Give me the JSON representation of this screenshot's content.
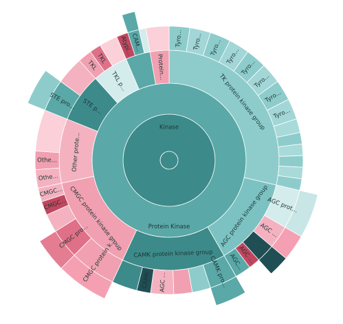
{
  "chart_data": {
    "type": "sunburst",
    "nodes": [
      {
        "name": "Kinase",
        "value": 360,
        "color": "#3d8a8a",
        "children": [
          {
            "name": "Protein Kinase",
            "value": 360,
            "color": "#5aa8a8",
            "children": [
              {
                "name": "TK protein kinase group",
                "value": 103,
                "color": "#8ecccc",
                "children": [
                  {
                    "name": "Tyro...",
                    "value": 9,
                    "color": "#8ecccc"
                  },
                  {
                    "name": "Tyro...",
                    "value": 9,
                    "color": "#a3d6d6"
                  },
                  {
                    "name": "Tyro...",
                    "value": 9,
                    "color": "#8ecccc"
                  },
                  {
                    "name": "Tyro...",
                    "value": 9,
                    "color": "#a3d6d6"
                  },
                  {
                    "name": "Tyro...",
                    "value": 9,
                    "color": "#8ecccc"
                  },
                  {
                    "name": "Tyro...",
                    "value": 9,
                    "color": "#a3d6d6"
                  },
                  {
                    "name": "Tyro...",
                    "value": 9,
                    "color": "#8ecccc"
                  },
                  {
                    "name": "Tyro...",
                    "value": 9,
                    "color": "#a3d6d6"
                  },
                  {
                    "name": null,
                    "value": 6,
                    "color": "#a8dada"
                  },
                  {
                    "name": null,
                    "value": 5,
                    "color": "#8ecccc"
                  },
                  {
                    "name": null,
                    "value": 5,
                    "color": "#a8dada"
                  },
                  {
                    "name": null,
                    "value": 5,
                    "color": "#8ecccc"
                  },
                  {
                    "name": null,
                    "value": 5,
                    "color": "#a8dada"
                  },
                  {
                    "name": null,
                    "value": 5,
                    "color": "#8ecccc"
                  }
                ]
              },
              {
                "name": "AGC protein kinase group",
                "value": 47,
                "color": "#7cc2c2",
                "children": [
                  {
                    "name": "AGC prot...",
                    "value": 17,
                    "color": "#d4ecec",
                    "children": [
                      {
                        "name": null,
                        "value": 17,
                        "color": "#c8e6e6"
                      }
                    ]
                  },
                  {
                    "name": "AGC ...",
                    "value": 10,
                    "color": "#f4b2c0",
                    "children": [
                      {
                        "name": null,
                        "value": 10,
                        "color": "#f4a0b2"
                      }
                    ]
                  },
                  {
                    "name": null,
                    "value": 8,
                    "color": "#1f4f55",
                    "children": [
                      {
                        "name": null,
                        "value": 8,
                        "color": "#1f4f55"
                      }
                    ]
                  },
                  {
                    "name": "AGC ...",
                    "value": 5,
                    "color": "#c0475f"
                  },
                  {
                    "name": "AGC...",
                    "value": 7,
                    "color": "#5aa8a8"
                  }
                ]
              },
              {
                "name": "CAMK protein kinase group",
                "value": 55,
                "color": "#3d8a8a",
                "children": [
                  {
                    "name": "CAMK pro...",
                    "value": 12,
                    "color": "#5aa8a8",
                    "children": [
                      {
                        "name": null,
                        "value": 12,
                        "color": "#5aa8a8"
                      }
                    ]
                  },
                  {
                    "name": null,
                    "value": 8,
                    "color": "#8ecccc"
                  },
                  {
                    "name": null,
                    "value": 8,
                    "color": "#f0a0b0"
                  },
                  {
                    "name": "AGC ...",
                    "value": 10,
                    "color": "#f4b2c0"
                  },
                  {
                    "name": "CAMK",
                    "value": 6,
                    "color": "#1f4f55"
                  },
                  {
                    "name": null,
                    "value": 11,
                    "color": "#3d8a8a"
                  }
                ]
              },
              {
                "name": "CMGC protein kinase group",
                "value": 53,
                "color": "#f0a0b0",
                "children": [
                  {
                    "name": "CMGC protein k...",
                    "value": 20,
                    "color": "#f0a0b0",
                    "children": [
                      {
                        "name": null,
                        "value": 20,
                        "color": "#f4a0b2"
                      }
                    ]
                  },
                  {
                    "name": "CMGC pro...",
                    "value": 13,
                    "color": "#e07088",
                    "children": [
                      {
                        "name": null,
                        "value": 13,
                        "color": "#e47d92"
                      }
                    ]
                  },
                  {
                    "name": null,
                    "value": 8,
                    "color": "#f4b2c0"
                  },
                  {
                    "name": "CMGC...",
                    "value": 6,
                    "color": "#c0475f"
                  },
                  {
                    "name": "CMGC...",
                    "value": 6,
                    "color": "#f4b2c0"
                  }
                ]
              },
              {
                "name": "Other prote...",
                "value": 34,
                "color": "#f4b2c0",
                "children": [
                  {
                    "name": "Othe...",
                    "value": 8,
                    "color": "#f4b2c0"
                  },
                  {
                    "name": "Othe...",
                    "value": 8,
                    "color": "#f0a0b0"
                  },
                  {
                    "name": null,
                    "value": 18,
                    "color": "#fbd0d8"
                  }
                ]
              },
              {
                "name": "STE p...",
                "value": 26,
                "color": "#3d8a8a",
                "children": [
                  {
                    "name": "STE pro...",
                    "value": 14,
                    "color": "#5aa8a8",
                    "children": [
                      {
                        "name": null,
                        "value": 14,
                        "color": "#8ecccc"
                      }
                    ]
                  },
                  {
                    "name": null,
                    "value": 12,
                    "color": "#f4b2c0"
                  }
                ]
              },
              {
                "name": "TKL p...",
                "value": 19,
                "color": "#d4ecec",
                "children": [
                  {
                    "name": "TKL",
                    "value": 6,
                    "color": "#f0a0b0"
                  },
                  {
                    "name": "TKL",
                    "value": 5,
                    "color": "#e07088"
                  },
                  {
                    "name": null,
                    "value": 8,
                    "color": "#fbd0d8"
                  }
                ]
              },
              {
                "name": null,
                "value": 13,
                "color": "#5aa8a8",
                "children": [
                  {
                    "name": "Atypi...",
                    "value": 5,
                    "color": "#c0475f"
                  },
                  {
                    "name": "CAM...",
                    "value": 5,
                    "color": "#5aa8a8",
                    "children": [
                      {
                        "name": null,
                        "value": 5,
                        "color": "#5aa8a8"
                      }
                    ]
                  },
                  {
                    "name": null,
                    "value": 3,
                    "color": "#d4ecec"
                  }
                ]
              },
              {
                "name": "Protein...",
                "value": 10,
                "color": "#f0a0b0",
                "children": [
                  {
                    "name": null,
                    "value": 10,
                    "color": "#fbd0d8"
                  }
                ]
              }
            ]
          }
        ]
      }
    ]
  }
}
